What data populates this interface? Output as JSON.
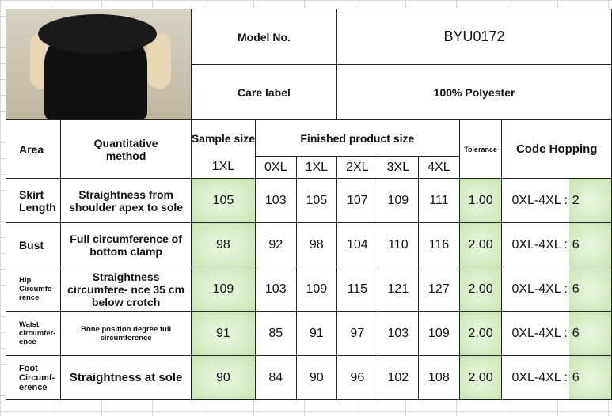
{
  "header": {
    "model_label": "Model No.",
    "model_value": "BYU0172",
    "care_label": "Care label",
    "care_value": "100% Polyester"
  },
  "columns": {
    "area": "Area",
    "method": "Quantitative method",
    "sample": "Sample size",
    "finished": "Finished product size",
    "tolerance": "Tolerance",
    "code": "Code Hopping",
    "sample_size": "1XL",
    "sizes": [
      "0XL",
      "1XL",
      "2XL",
      "3XL",
      "4XL"
    ]
  },
  "rows": [
    {
      "area": "Skirt Length",
      "method": "Straightness from shoulder apex to sole",
      "sample": "105",
      "values": [
        "103",
        "105",
        "107",
        "109",
        "111"
      ],
      "tolerance": "1.00",
      "range": "0XL-4XL :",
      "hop": "2"
    },
    {
      "area": "Bust",
      "method": "Full circumference of bottom clamp",
      "sample": "98",
      "values": [
        "92",
        "98",
        "104",
        "110",
        "116"
      ],
      "tolerance": "2.00",
      "range": "0XL-4XL :",
      "hop": "6"
    },
    {
      "area": "Hip Circumfe- rence",
      "method": "Straightness circumfere- nce 35 cm below crotch",
      "sample": "109",
      "values": [
        "103",
        "109",
        "115",
        "121",
        "127"
      ],
      "tolerance": "2.00",
      "range": "0XL-4XL :",
      "hop": "6"
    },
    {
      "area": "Waist circumfer- ence",
      "method": "Bone position degree full circumference",
      "sample": "91",
      "values": [
        "85",
        "91",
        "97",
        "103",
        "109"
      ],
      "tolerance": "2.00",
      "range": "0XL-4XL :",
      "hop": "6"
    },
    {
      "area": "Foot Circumf- erence",
      "method": "Straightness at sole",
      "sample": "90",
      "values": [
        "84",
        "90",
        "96",
        "102",
        "108"
      ],
      "tolerance": "2.00",
      "range": "0XL-4XL :",
      "hop": "6"
    }
  ],
  "colors": {
    "highlight": "#c9e6b3",
    "border": "#222222"
  }
}
